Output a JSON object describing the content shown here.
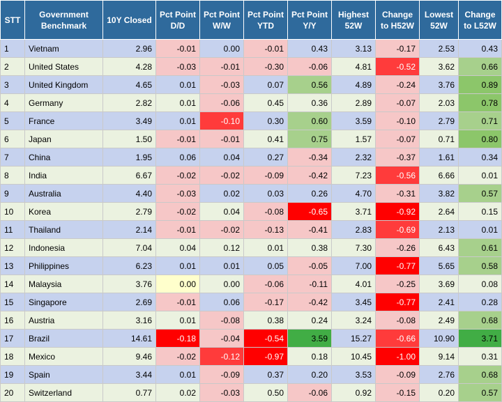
{
  "table": {
    "headers": [
      "STT",
      "Government Benchmark",
      "10Y Closed",
      "Pct Point D/D",
      "Pct Point W/W",
      "Pct Point YTD",
      "Pct Point Y/Y",
      "Highest 52W",
      "Change to H52W",
      "Lowest 52W",
      "Change to L52W"
    ],
    "rows": [
      [
        "1",
        "Vietnam",
        "2.96",
        "-0.01",
        "0.00",
        "-0.01",
        "0.43",
        "3.13",
        "-0.17",
        "2.53",
        "0.43"
      ],
      [
        "2",
        "United States",
        "4.28",
        "-0.03",
        "-0.01",
        "-0.30",
        "-0.06",
        "4.81",
        "-0.52",
        "3.62",
        "0.66"
      ],
      [
        "3",
        "United Kingdom",
        "4.65",
        "0.01",
        "-0.03",
        "0.07",
        "0.56",
        "4.89",
        "-0.24",
        "3.76",
        "0.89"
      ],
      [
        "4",
        "Germany",
        "2.82",
        "0.01",
        "-0.06",
        "0.45",
        "0.36",
        "2.89",
        "-0.07",
        "2.03",
        "0.78"
      ],
      [
        "5",
        "France",
        "3.49",
        "0.01",
        "-0.10",
        "0.30",
        "0.60",
        "3.59",
        "-0.10",
        "2.79",
        "0.71"
      ],
      [
        "6",
        "Japan",
        "1.50",
        "-0.01",
        "-0.01",
        "0.41",
        "0.75",
        "1.57",
        "-0.07",
        "0.71",
        "0.80"
      ],
      [
        "7",
        "China",
        "1.95",
        "0.06",
        "0.04",
        "0.27",
        "-0.34",
        "2.32",
        "-0.37",
        "1.61",
        "0.34"
      ],
      [
        "8",
        "India",
        "6.67",
        "-0.02",
        "-0.02",
        "-0.09",
        "-0.42",
        "7.23",
        "-0.56",
        "6.66",
        "0.01"
      ],
      [
        "9",
        "Australia",
        "4.40",
        "-0.03",
        "0.02",
        "0.03",
        "0.26",
        "4.70",
        "-0.31",
        "3.82",
        "0.57"
      ],
      [
        "10",
        "Korea",
        "2.79",
        "-0.02",
        "0.04",
        "-0.08",
        "-0.65",
        "3.71",
        "-0.92",
        "2.64",
        "0.15"
      ],
      [
        "11",
        "Thailand",
        "2.14",
        "-0.01",
        "-0.02",
        "-0.13",
        "-0.41",
        "2.83",
        "-0.69",
        "2.13",
        "0.01"
      ],
      [
        "12",
        "Indonesia",
        "7.04",
        "0.04",
        "0.12",
        "0.01",
        "0.38",
        "7.30",
        "-0.26",
        "6.43",
        "0.61"
      ],
      [
        "13",
        "Philippines",
        "6.23",
        "0.01",
        "0.01",
        "0.05",
        "-0.05",
        "7.00",
        "-0.77",
        "5.65",
        "0.58"
      ],
      [
        "14",
        "Malaysia",
        "3.76",
        "0.00",
        "0.00",
        "-0.06",
        "-0.11",
        "4.01",
        "-0.25",
        "3.69",
        "0.08"
      ],
      [
        "15",
        "Singapore",
        "2.69",
        "-0.01",
        "0.06",
        "-0.17",
        "-0.42",
        "3.45",
        "-0.77",
        "2.41",
        "0.28"
      ],
      [
        "16",
        "Austria",
        "3.16",
        "0.01",
        "-0.08",
        "0.38",
        "0.24",
        "3.24",
        "-0.08",
        "2.49",
        "0.68"
      ],
      [
        "17",
        "Brazil",
        "14.61",
        "-0.18",
        "-0.04",
        "-0.54",
        "3.59",
        "15.27",
        "-0.66",
        "10.90",
        "3.71"
      ],
      [
        "18",
        "Mexico",
        "9.46",
        "-0.02",
        "-0.12",
        "-0.97",
        "0.18",
        "10.45",
        "-1.00",
        "9.14",
        "0.31"
      ],
      [
        "19",
        "Spain",
        "3.44",
        "0.01",
        "-0.09",
        "0.37",
        "0.20",
        "3.53",
        "-0.09",
        "2.76",
        "0.68"
      ],
      [
        "20",
        "Switzerland",
        "0.77",
        "0.02",
        "-0.03",
        "0.50",
        "-0.06",
        "0.92",
        "-0.15",
        "0.20",
        "0.57"
      ]
    ]
  }
}
